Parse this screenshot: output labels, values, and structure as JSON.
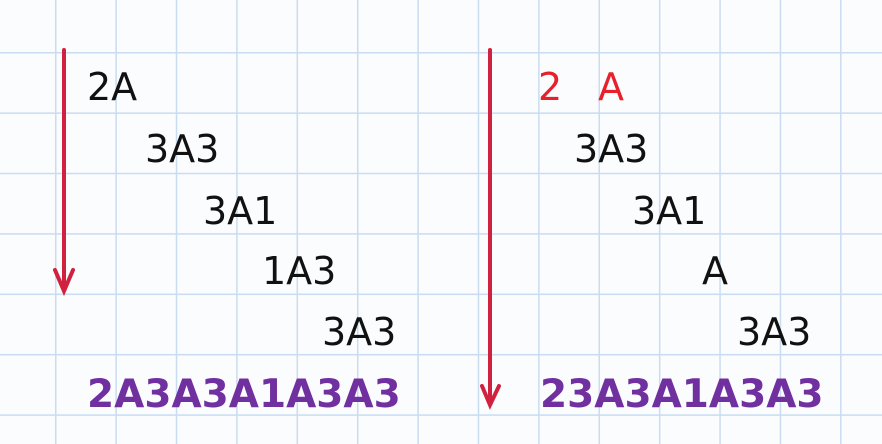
{
  "left": {
    "rows": [
      "2A",
      "3A3",
      "3A1",
      "1A3",
      "3A3"
    ],
    "result": "2A3A3A1A3A3"
  },
  "right": {
    "first_digit": "2",
    "first_letter": "A",
    "rows": [
      "3A3",
      "3A1",
      "A",
      "3A3"
    ],
    "result": "23A3A1A3A3"
  },
  "colors": {
    "arrow": "#d0223f",
    "result": "#7030a0",
    "highlight": "#e8202a",
    "text": "#111111"
  }
}
